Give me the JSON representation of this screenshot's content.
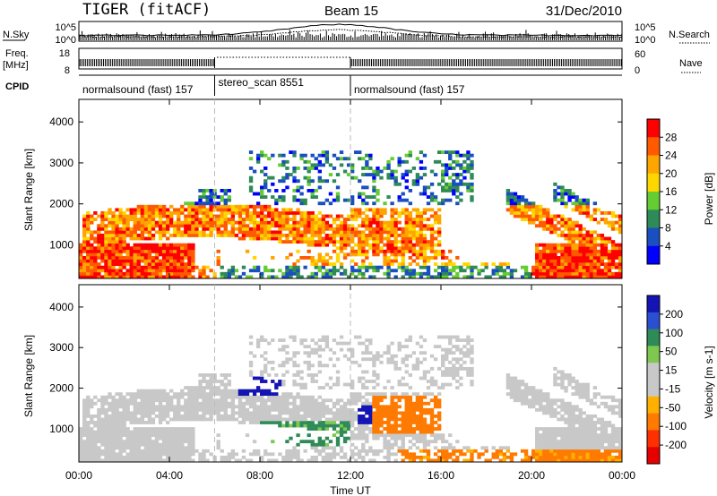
{
  "header": {
    "title": "TIGER (fitACF)",
    "beam": "Beam 15",
    "date": "31/Dec/2010"
  },
  "top_panels": {
    "nsky_label": "N.Sky",
    "nsearch_label": "N.Search",
    "freq_label_1": "Freq.",
    "freq_label_2": "[MHz]",
    "nave_label": "Nave",
    "cpid_label": "CPID",
    "nsky_ticks": [
      "10^5",
      "10^0"
    ],
    "nsearch_ticks": [
      "10^5",
      "10^0"
    ],
    "freq_ticks": [
      "18",
      "8"
    ],
    "nave_ticks": [
      "60",
      "0"
    ]
  },
  "cpid_segments": [
    {
      "label": "normalsound (fast) 157",
      "start_hour": 0,
      "end_hour": 6
    },
    {
      "label": "stereo_scan 8551",
      "start_hour": 6,
      "end_hour": 12
    },
    {
      "label": "normalsound (fast) 157",
      "start_hour": 12,
      "end_hour": 24
    }
  ],
  "colors": {
    "power": [
      "#0000ff",
      "#1a4fc0",
      "#2e8b57",
      "#66cc33",
      "#ffd700",
      "#ffa500",
      "#ff5a00",
      "#ff0000"
    ],
    "velocity": [
      "#1414b4",
      "#2a4fd0",
      "#2e8b57",
      "#7ec850",
      "#c8c8c8",
      "#c8c8c8",
      "#ffb000",
      "#ff7a00",
      "#ff3000",
      "#e60000"
    ]
  },
  "chart_data": [
    {
      "type": "heatmap",
      "name": "power",
      "ylabel": "Slant Range [km]",
      "yticks": [
        "4000",
        "3000",
        "2000",
        "1000"
      ],
      "ylim": [
        180,
        4550
      ],
      "xlim": [
        0,
        24
      ],
      "colorbar_label": "Power [dB]",
      "colorbar_ticks": [
        "28",
        "24",
        "20",
        "16",
        "12",
        "8",
        "4"
      ],
      "colorbar_range": [
        0,
        32
      ]
    },
    {
      "type": "heatmap",
      "name": "velocity",
      "ylabel": "Slant Range [km]",
      "yticks": [
        "4000",
        "3000",
        "2000",
        "1000"
      ],
      "ylim": [
        180,
        4550
      ],
      "xlim": [
        0,
        24
      ],
      "colorbar_label": "Velocity [m s-1]",
      "colorbar_ticks": [
        "200",
        "100",
        "50",
        "15",
        "-15",
        "-50",
        "-100",
        "-200"
      ]
    }
  ],
  "time_axis": {
    "ticks": [
      "00:00",
      "04:00",
      "08:00",
      "12:00",
      "16:00",
      "20:00",
      "00:00"
    ],
    "label": "Time UT"
  }
}
